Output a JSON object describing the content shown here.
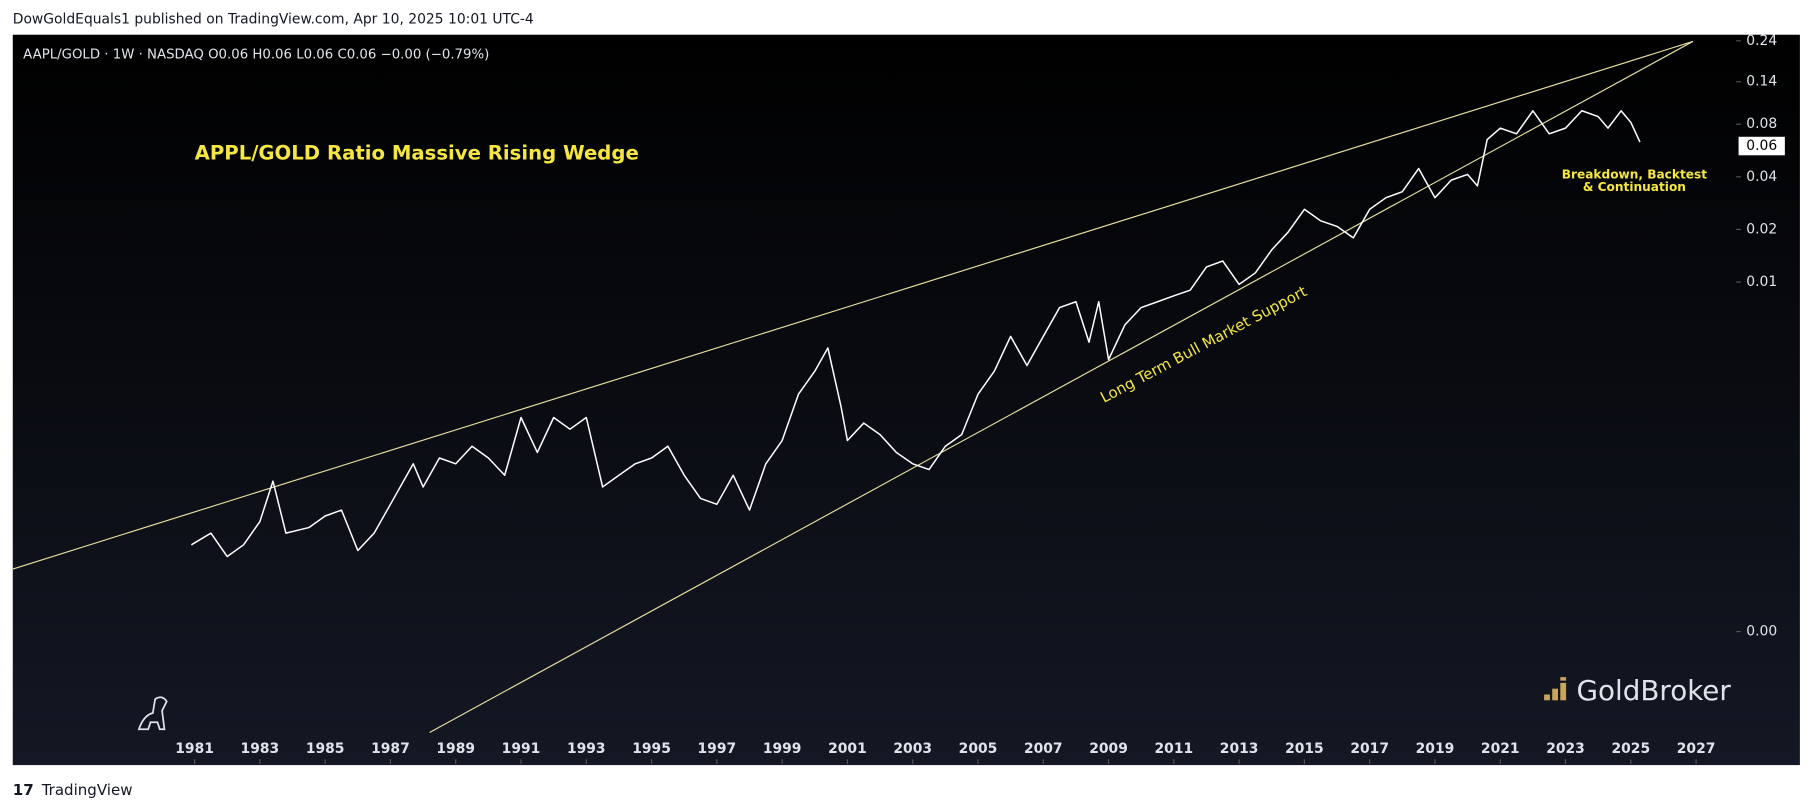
{
  "header": "DowGoldEquals1 published on TradingView.com, Apr 10, 2025 10:01 UTC-4",
  "footer": "TradingView",
  "chart_data": {
    "type": "line",
    "symbol_info": "AAPL/GOLD · 1W · NASDAQ  O0.06  H0.06  L0.06  C0.06  −0.00 (−0.79%)",
    "title": "APPL/GOLD Ratio Massive Rising Wedge",
    "annotations": [
      "Long Term Bull Market Support",
      "Breakdown, Backtest",
      "& Continuation"
    ],
    "watermark": "GoldBroker",
    "log_scale": true,
    "xlim": [
      1975.43,
      2028.23
    ],
    "xticks": [
      1981,
      1983,
      1985,
      1987,
      1989,
      1991,
      1993,
      1995,
      1997,
      1999,
      2001,
      2003,
      2005,
      2007,
      2009,
      2011,
      2013,
      2015,
      2017,
      2019,
      2021,
      2023,
      2025,
      2027
    ],
    "ylim": [
      1.75e-05,
      0.26
    ],
    "yticks": [
      0.24,
      0.14,
      0.08,
      0.04,
      0.02,
      0.01,
      {
        "value": 0.0001,
        "label": "0.00"
      }
    ],
    "last_price": 0.06,
    "series": [
      {
        "color": "#ffffff",
        "x": [
          1980.9,
          1981.5,
          1982.0,
          1982.5,
          1983.0,
          1983.4,
          1983.8,
          1984.5,
          1985.0,
          1985.5,
          1986.0,
          1986.5,
          1987.0,
          1987.7,
          1988.0,
          1988.5,
          1989.0,
          1989.5,
          1990.0,
          1990.5,
          1991.0,
          1991.5,
          1992.0,
          1992.5,
          1993.0,
          1993.5,
          1994.0,
          1994.5,
          1995.0,
          1995.5,
          1996.0,
          1996.5,
          1997.0,
          1997.5,
          1998.0,
          1998.5,
          1999.0,
          1999.5,
          2000.0,
          2000.4,
          2000.8,
          2001.0,
          2001.5,
          2002.0,
          2002.5,
          2003.0,
          2003.5,
          2004.0,
          2004.5,
          2005.0,
          2005.5,
          2006.0,
          2006.5,
          2007.0,
          2007.5,
          2008.0,
          2008.4,
          2008.7,
          2009.0,
          2009.5,
          2010.0,
          2010.5,
          2011.0,
          2011.5,
          2012.0,
          2012.5,
          2013.0,
          2013.5,
          2014.0,
          2014.5,
          2015.0,
          2015.5,
          2016.0,
          2016.5,
          2017.0,
          2017.5,
          2018.0,
          2018.5,
          2019.0,
          2019.5,
          2020.0,
          2020.3,
          2020.6,
          2021.0,
          2021.5,
          2022.0,
          2022.5,
          2023.0,
          2023.5,
          2024.0,
          2024.3,
          2024.7,
          2025.0,
          2025.28
        ],
        "values": [
          0.000314,
          0.000366,
          0.000269,
          0.000314,
          0.000426,
          0.000726,
          0.000366,
          0.000394,
          0.000459,
          0.000496,
          0.000291,
          0.000366,
          0.000535,
          0.000912,
          0.000673,
          0.000985,
          0.000912,
          0.00115,
          0.000985,
          0.000784,
          0.00168,
          0.00106,
          0.00168,
          0.00144,
          0.00168,
          0.000673,
          0.000784,
          0.000912,
          0.000985,
          0.00115,
          0.000784,
          0.000578,
          0.000535,
          0.000784,
          0.000496,
          0.000912,
          0.00124,
          0.00228,
          0.00309,
          0.0042,
          0.00195,
          0.00124,
          0.00156,
          0.00134,
          0.00106,
          0.000912,
          0.000845,
          0.00115,
          0.00134,
          0.00228,
          0.00309,
          0.00489,
          0.00333,
          0.00489,
          0.00715,
          0.00771,
          0.00453,
          0.00771,
          0.0036,
          0.00569,
          0.00715,
          0.00771,
          0.00834,
          0.00899,
          0.0122,
          0.0132,
          0.0097,
          0.0113,
          0.0153,
          0.0193,
          0.0261,
          0.0224,
          0.0208,
          0.0179,
          0.0261,
          0.0304,
          0.0329,
          0.0446,
          0.0304,
          0.0383,
          0.0413,
          0.0355,
          0.0653,
          0.076,
          0.0705,
          0.0955,
          0.0705,
          0.076,
          0.0955,
          0.0885,
          0.076,
          0.0955,
          0.082,
          0.0633
        ]
      }
    ],
    "trendlines": [
      {
        "color": "#e6dfa0",
        "x": [
          1975.43,
          2026.9
        ],
        "values": [
          0.000228,
          0.238
        ]
      },
      {
        "color": "#e6dfa0",
        "x": [
          1988.2,
          2026.9
        ],
        "values": [
          2.65e-05,
          0.238
        ]
      }
    ]
  }
}
